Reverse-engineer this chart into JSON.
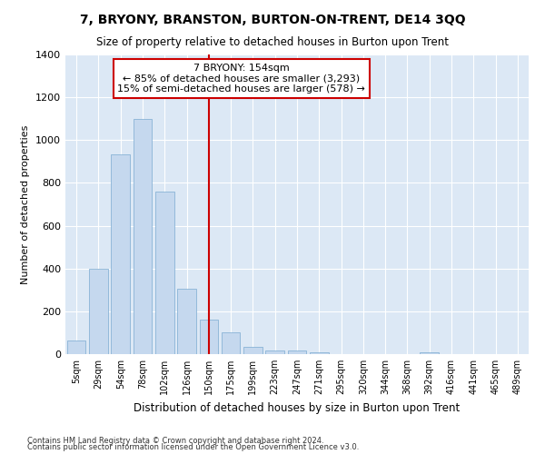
{
  "title": "7, BRYONY, BRANSTON, BURTON-ON-TRENT, DE14 3QQ",
  "subtitle": "Size of property relative to detached houses in Burton upon Trent",
  "xlabel": "Distribution of detached houses by size in Burton upon Trent",
  "ylabel": "Number of detached properties",
  "categories": [
    "5sqm",
    "29sqm",
    "54sqm",
    "78sqm",
    "102sqm",
    "126sqm",
    "150sqm",
    "175sqm",
    "199sqm",
    "223sqm",
    "247sqm",
    "271sqm",
    "295sqm",
    "320sqm",
    "344sqm",
    "368sqm",
    "392sqm",
    "416sqm",
    "441sqm",
    "465sqm",
    "489sqm"
  ],
  "values": [
    65,
    400,
    935,
    1100,
    760,
    305,
    160,
    100,
    35,
    15,
    15,
    10,
    0,
    0,
    0,
    0,
    10,
    0,
    0,
    0,
    0
  ],
  "bar_color": "#c5d8ee",
  "bar_edge_color": "#7aaad0",
  "vline_x": 6,
  "vline_color": "#cc0000",
  "annotation_text": "7 BRYONY: 154sqm\n← 85% of detached houses are smaller (3,293)\n15% of semi-detached houses are larger (578) →",
  "annotation_box_color": "#cc0000",
  "ylim": [
    0,
    1400
  ],
  "yticks": [
    0,
    200,
    400,
    600,
    800,
    1000,
    1200,
    1400
  ],
  "fig_bg_color": "#ffffff",
  "plot_bg_color": "#dce8f5",
  "grid_color": "#ffffff",
  "footnote1": "Contains HM Land Registry data © Crown copyright and database right 2024.",
  "footnote2": "Contains public sector information licensed under the Open Government Licence v3.0."
}
